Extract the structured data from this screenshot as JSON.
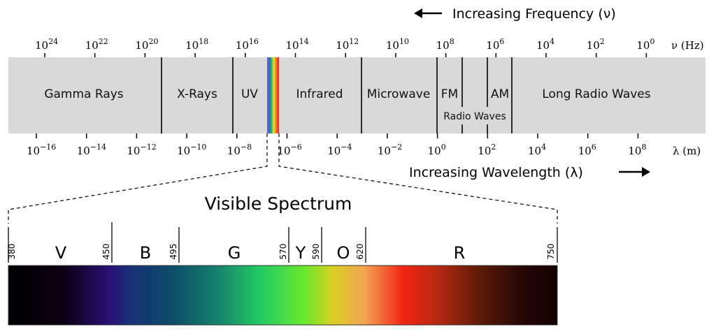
{
  "frequency_label": "Increasing Frequency (ν)",
  "wavelength_label": "Increasing Wavelength (λ)",
  "frequency_unit": "ν (Hz)",
  "wavelength_unit": "λ (m)",
  "frequency_exponents": [
    "24",
    "22",
    "20",
    "18",
    "16",
    "14",
    "12",
    "10",
    "8",
    "6",
    "4",
    "2",
    "0"
  ],
  "wavelength_exponents": [
    "−16",
    "−14",
    "−12",
    "−10",
    "−8",
    "−6",
    "−4",
    "−2",
    "0",
    "2",
    "4",
    "6",
    "8"
  ],
  "bands": {
    "gamma": "Gamma Rays",
    "xray": "X-Rays",
    "uv": "UV",
    "infrared": "Infrared",
    "microwave": "Microwave",
    "fm": "FM",
    "am": "AM",
    "radio": "Radio Waves",
    "long_radio": "Long Radio Waves"
  },
  "visible": {
    "title": "Visible Spectrum",
    "boundaries": [
      "380",
      "450",
      "495",
      "570",
      "590",
      "620",
      "750"
    ],
    "colors": [
      "V",
      "B",
      "G",
      "Y",
      "O",
      "R"
    ]
  },
  "colors": {
    "band_fill": "#d9d9d9"
  }
}
